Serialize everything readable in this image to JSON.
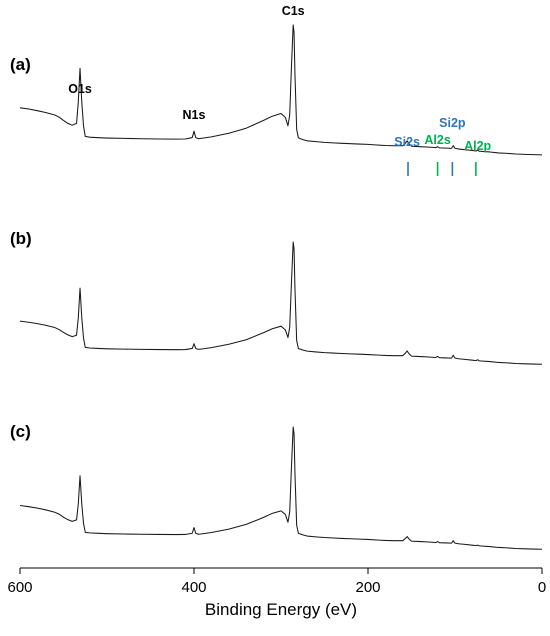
{
  "chart_data": {
    "type": "line",
    "xlabel": "Binding Energy (eV)",
    "ylabel": "",
    "xlim": [
      600,
      0
    ],
    "x_reversed": true,
    "xticks": [
      600,
      400,
      200,
      0
    ],
    "xtick_labels": [
      "600",
      "400",
      "200",
      "0"
    ],
    "grid": false,
    "y_axis_shown": false,
    "panels": [
      {
        "label": "(a)",
        "series": [
          {
            "x": [
              600,
              590,
              580,
              570,
              560,
              555,
              550,
              545,
              540,
              535,
              533,
              531,
              529,
              527,
              525,
              520,
              510,
              500,
              480,
              460,
              440,
              420,
              410,
              402,
              400,
              398,
              395,
              390,
              380,
              360,
              340,
              320,
              310,
              300,
              295,
              292,
              290,
              288,
              286,
              285,
              284,
              282,
              280,
              275,
              270,
              260,
              250,
              240,
              230,
              220,
              210,
              200,
              190,
              180,
              170,
              160,
              157,
              155,
              153,
              150,
              140,
              130,
              122,
              120,
              118,
              110,
              104,
              102,
              100,
              95,
              90,
              80,
              76,
              74,
              72,
              60,
              50,
              40,
              30,
              20,
              10,
              0
            ],
            "y": [
              0.31,
              0.3,
              0.286,
              0.27,
              0.25,
              0.232,
              0.205,
              0.18,
              0.165,
              0.18,
              0.36,
              0.638,
              0.36,
              0.16,
              0.072,
              0.065,
              0.061,
              0.058,
              0.055,
              0.052,
              0.05,
              0.049,
              0.05,
              0.062,
              0.115,
              0.062,
              0.052,
              0.057,
              0.068,
              0.098,
              0.14,
              0.205,
              0.24,
              0.262,
              0.23,
              0.16,
              0.25,
              0.65,
              1.0,
              0.94,
              0.6,
              0.13,
              0.06,
              0.045,
              0.035,
              0.028,
              0.022,
              0.018,
              0.014,
              0.011,
              0.008,
              0.005,
              0.0,
              -0.004,
              -0.006,
              -0.006,
              0.015,
              0.035,
              0.012,
              -0.01,
              -0.014,
              -0.018,
              -0.022,
              -0.014,
              -0.024,
              -0.026,
              -0.028,
              -0.005,
              -0.028,
              -0.034,
              -0.038,
              -0.046,
              -0.05,
              -0.044,
              -0.052,
              -0.058,
              -0.066,
              -0.07,
              -0.075,
              -0.078,
              -0.08,
              -0.082
            ]
          }
        ],
        "peak_labels": [
          {
            "text": "C1s",
            "x": 286,
            "color": "#000000"
          },
          {
            "text": "O1s",
            "x": 531,
            "color": "#000000"
          },
          {
            "text": "N1s",
            "x": 400,
            "color": "#000000"
          },
          {
            "text": "Si2s",
            "x": 155,
            "color": "#2e75b6"
          },
          {
            "text": "Al2s",
            "x": 120,
            "color": "#00b050"
          },
          {
            "text": "Si2p",
            "x": 103,
            "color": "#2e75b6"
          },
          {
            "text": "Al2p",
            "x": 74,
            "color": "#00b050"
          }
        ],
        "markers": [
          {
            "x": 154,
            "color": "#2e75b6"
          },
          {
            "x": 120,
            "color": "#00b050"
          },
          {
            "x": 103,
            "color": "#2e75b6"
          },
          {
            "x": 76,
            "color": "#00b050"
          }
        ]
      },
      {
        "label": "(b)",
        "series": [
          {
            "x": [
              600,
              590,
              580,
              570,
              560,
              555,
              550,
              545,
              540,
              535,
              533,
              531,
              529,
              527,
              525,
              520,
              510,
              500,
              480,
              460,
              440,
              420,
              410,
              402,
              400,
              398,
              395,
              390,
              380,
              360,
              340,
              320,
              310,
              300,
              295,
              292,
              290,
              288,
              286,
              285,
              284,
              282,
              280,
              275,
              270,
              260,
              250,
              240,
              230,
              220,
              210,
              200,
              190,
              180,
              170,
              160,
              157,
              155,
              153,
              150,
              140,
              130,
              122,
              120,
              118,
              110,
              104,
              102,
              100,
              95,
              90,
              80,
              76,
              74,
              72,
              60,
              50,
              40,
              30,
              20,
              10,
              0
            ],
            "y": [
              0.3,
              0.29,
              0.278,
              0.262,
              0.243,
              0.225,
              0.2,
              0.178,
              0.163,
              0.175,
              0.33,
              0.592,
              0.33,
              0.15,
              0.068,
              0.062,
              0.058,
              0.055,
              0.052,
              0.05,
              0.048,
              0.047,
              0.048,
              0.058,
              0.1,
              0.058,
              0.05,
              0.054,
              0.065,
              0.095,
              0.135,
              0.198,
              0.232,
              0.255,
              0.222,
              0.155,
              0.245,
              0.64,
              1.0,
              0.94,
              0.6,
              0.128,
              0.058,
              0.044,
              0.034,
              0.027,
              0.021,
              0.017,
              0.013,
              0.01,
              0.007,
              0.004,
              0.0,
              -0.004,
              -0.006,
              -0.006,
              0.016,
              0.036,
              0.012,
              -0.01,
              -0.014,
              -0.018,
              -0.022,
              -0.012,
              -0.024,
              -0.026,
              -0.028,
              -0.002,
              -0.028,
              -0.034,
              -0.038,
              -0.046,
              -0.05,
              -0.042,
              -0.052,
              -0.058,
              -0.066,
              -0.07,
              -0.075,
              -0.078,
              -0.08,
              -0.082
            ]
          }
        ]
      },
      {
        "label": "(c)",
        "series": [
          {
            "x": [
              600,
              590,
              580,
              570,
              560,
              555,
              550,
              545,
              540,
              535,
              533,
              531,
              529,
              527,
              525,
              520,
              510,
              500,
              480,
              460,
              440,
              420,
              410,
              402,
              400,
              398,
              395,
              390,
              380,
              360,
              340,
              320,
              310,
              300,
              295,
              292,
              290,
              288,
              286,
              285,
              284,
              282,
              280,
              275,
              270,
              260,
              250,
              240,
              230,
              220,
              210,
              200,
              190,
              180,
              170,
              160,
              157,
              155,
              153,
              150,
              140,
              130,
              122,
              120,
              118,
              110,
              104,
              102,
              100,
              95,
              90,
              80,
              76,
              74,
              72,
              60,
              50,
              40,
              30,
              20,
              10,
              0
            ],
            "y": [
              0.305,
              0.295,
              0.282,
              0.266,
              0.246,
              0.228,
              0.202,
              0.18,
              0.165,
              0.178,
              0.32,
              0.568,
              0.32,
              0.148,
              0.068,
              0.063,
              0.059,
              0.056,
              0.053,
              0.051,
              0.049,
              0.048,
              0.049,
              0.06,
              0.11,
              0.06,
              0.051,
              0.055,
              0.066,
              0.096,
              0.138,
              0.2,
              0.236,
              0.258,
              0.226,
              0.157,
              0.248,
              0.645,
              1.0,
              0.94,
              0.6,
              0.13,
              0.06,
              0.045,
              0.035,
              0.028,
              0.022,
              0.018,
              0.014,
              0.011,
              0.008,
              0.005,
              0.0,
              -0.004,
              -0.006,
              -0.006,
              0.014,
              0.03,
              0.01,
              -0.01,
              -0.014,
              -0.018,
              -0.022,
              -0.014,
              -0.024,
              -0.026,
              -0.028,
              -0.006,
              -0.028,
              -0.034,
              -0.038,
              -0.046,
              -0.05,
              -0.045,
              -0.052,
              -0.058,
              -0.066,
              -0.07,
              -0.075,
              -0.078,
              -0.08,
              -0.082
            ]
          }
        ]
      }
    ]
  }
}
